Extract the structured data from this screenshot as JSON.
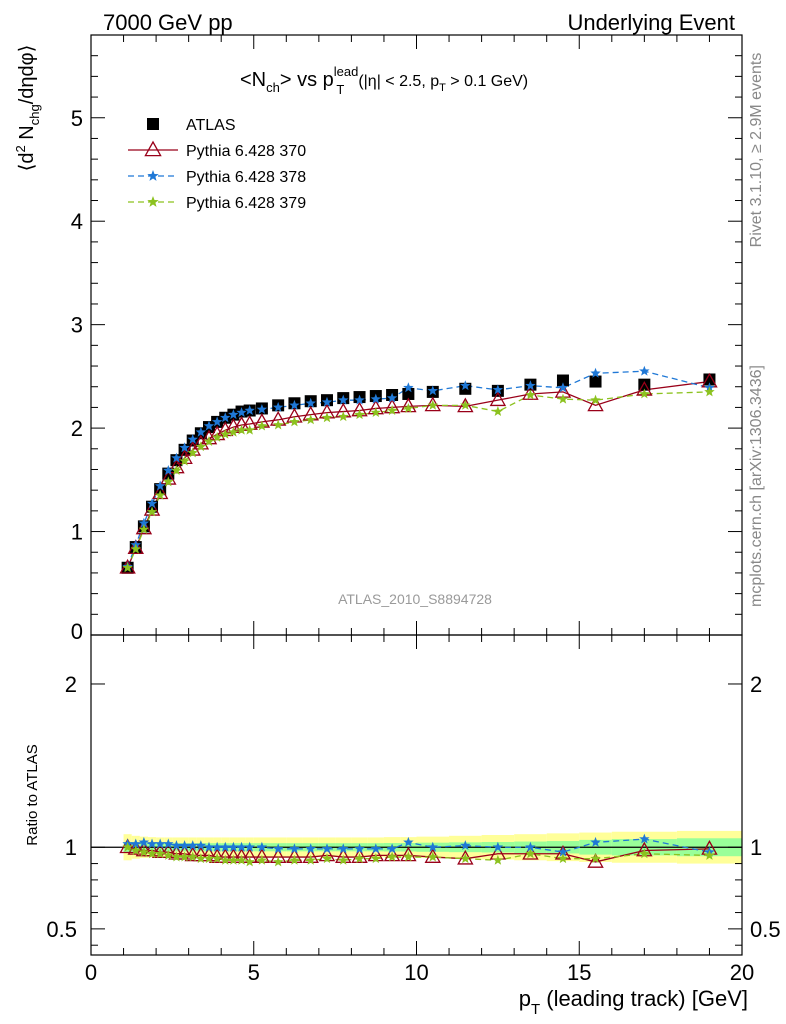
{
  "header": {
    "left": "7000 GeV pp",
    "right": "Underlying Event"
  },
  "side_texts": {
    "rivet": "Rivet 3.1.10, ≥ 2.9M events",
    "mcplots": "mcplots.cern.ch [arXiv:1306.3436]"
  },
  "colors": {
    "atlas": "#000000",
    "p370": "#990019",
    "p378": "#1f78d6",
    "p379": "#8cc21f",
    "band_inner": "#99ff99",
    "band_outer": "#ffff99"
  },
  "chart_data": [
    {
      "type": "scatter",
      "title": "<N_ch> vs p_T^lead (|η| < 2.5, p_T > 0.1 GeV)",
      "ylabel": "⟨d² N_chg/dηdφ⟩",
      "watermark": "ATLAS_2010_S8894728",
      "xlim": [
        0,
        20
      ],
      "ylim": [
        0,
        5.8
      ],
      "yticks": [
        1,
        2,
        3,
        4,
        5
      ],
      "legend_position": "top-left",
      "x": [
        1.125,
        1.375,
        1.625,
        1.875,
        2.125,
        2.375,
        2.625,
        2.875,
        3.125,
        3.375,
        3.625,
        3.875,
        4.125,
        4.375,
        4.625,
        4.875,
        5.25,
        5.75,
        6.25,
        6.75,
        7.25,
        7.75,
        8.25,
        8.75,
        9.25,
        9.75,
        10.5,
        11.5,
        12.5,
        13.5,
        14.5,
        15.5,
        17,
        19
      ],
      "series": [
        {
          "name": "ATLAS",
          "marker": "square",
          "values": [
            0.65,
            0.85,
            1.05,
            1.24,
            1.41,
            1.56,
            1.69,
            1.79,
            1.88,
            1.95,
            2.01,
            2.06,
            2.1,
            2.13,
            2.16,
            2.17,
            2.19,
            2.22,
            2.24,
            2.26,
            2.27,
            2.29,
            2.3,
            2.31,
            2.32,
            2.33,
            2.35,
            2.38,
            2.36,
            2.42,
            2.46,
            2.45,
            2.42,
            2.47
          ]
        },
        {
          "name": "Pythia 6.428 370",
          "marker": "triangle",
          "values": [
            0.65,
            0.84,
            1.03,
            1.21,
            1.37,
            1.51,
            1.62,
            1.71,
            1.79,
            1.85,
            1.9,
            1.94,
            1.98,
            2.01,
            2.03,
            2.04,
            2.06,
            2.08,
            2.11,
            2.13,
            2.15,
            2.16,
            2.17,
            2.19,
            2.2,
            2.21,
            2.22,
            2.21,
            2.27,
            2.33,
            2.35,
            2.22,
            2.37,
            2.45
          ]
        },
        {
          "name": "Pythia 6.428 378",
          "marker": "star",
          "values": [
            0.66,
            0.87,
            1.08,
            1.27,
            1.44,
            1.59,
            1.71,
            1.81,
            1.89,
            1.96,
            2.02,
            2.06,
            2.1,
            2.13,
            2.15,
            2.17,
            2.18,
            2.2,
            2.22,
            2.24,
            2.25,
            2.27,
            2.27,
            2.28,
            2.29,
            2.39,
            2.36,
            2.41,
            2.37,
            2.41,
            2.39,
            2.53,
            2.55,
            2.39
          ]
        },
        {
          "name": "Pythia 6.428 379",
          "marker": "star",
          "values": [
            0.65,
            0.83,
            1.02,
            1.19,
            1.35,
            1.48,
            1.59,
            1.68,
            1.76,
            1.82,
            1.87,
            1.91,
            1.94,
            1.96,
            1.98,
            1.98,
            2.02,
            2.03,
            2.06,
            2.08,
            2.1,
            2.11,
            2.13,
            2.15,
            2.17,
            2.19,
            2.22,
            2.22,
            2.16,
            2.32,
            2.28,
            2.27,
            2.33,
            2.35
          ]
        }
      ]
    },
    {
      "type": "scatter",
      "ylabel": "Ratio to ATLAS",
      "xlabel": "p_T (leading track) [GeV]",
      "xlim": [
        0,
        20
      ],
      "ylim": [
        0.34,
        2.3
      ],
      "yticks": [
        0.5,
        1,
        2
      ],
      "ytick_labels": [
        "0.5",
        "1",
        "2"
      ],
      "xticks": [
        0,
        5,
        10,
        15,
        20
      ],
      "bands": {
        "x_edges": [
          1.0,
          1.25,
          1.5,
          1.75,
          2.0,
          2.25,
          2.5,
          2.75,
          3.0,
          3.25,
          3.5,
          3.75,
          4.0,
          4.25,
          4.5,
          4.75,
          5.0,
          5.5,
          6.0,
          6.5,
          7.0,
          7.5,
          8.0,
          8.5,
          9.0,
          9.5,
          10.0,
          11.0,
          12.0,
          13.0,
          14.0,
          15.0,
          16.0,
          18.0,
          20.0
        ],
        "inner": [
          0.03,
          0.028,
          0.027,
          0.026,
          0.026,
          0.025,
          0.025,
          0.025,
          0.025,
          0.025,
          0.025,
          0.025,
          0.025,
          0.025,
          0.025,
          0.025,
          0.025,
          0.025,
          0.025,
          0.025,
          0.025,
          0.025,
          0.025,
          0.025,
          0.026,
          0.026,
          0.028,
          0.03,
          0.032,
          0.035,
          0.038,
          0.045,
          0.05,
          0.055
        ],
        "outer": [
          0.08,
          0.07,
          0.065,
          0.062,
          0.06,
          0.06,
          0.06,
          0.06,
          0.06,
          0.06,
          0.06,
          0.06,
          0.06,
          0.06,
          0.06,
          0.06,
          0.06,
          0.06,
          0.06,
          0.06,
          0.06,
          0.06,
          0.06,
          0.06,
          0.062,
          0.062,
          0.065,
          0.07,
          0.075,
          0.08,
          0.085,
          0.09,
          0.095,
          0.1
        ]
      },
      "series": [
        {
          "name": "Pythia 6.428 370",
          "marker": "triangle",
          "values": [
            1.0,
            0.99,
            0.98,
            0.98,
            0.97,
            0.97,
            0.96,
            0.96,
            0.95,
            0.95,
            0.95,
            0.94,
            0.94,
            0.94,
            0.94,
            0.94,
            0.94,
            0.94,
            0.94,
            0.94,
            0.95,
            0.94,
            0.94,
            0.95,
            0.95,
            0.95,
            0.94,
            0.93,
            0.96,
            0.96,
            0.96,
            0.91,
            0.98,
            0.99
          ]
        },
        {
          "name": "Pythia 6.428 378",
          "marker": "star",
          "values": [
            1.02,
            1.02,
            1.03,
            1.02,
            1.02,
            1.02,
            1.01,
            1.01,
            1.01,
            1.01,
            1.0,
            1.0,
            1.0,
            1.0,
            1.0,
            1.0,
            1.0,
            0.99,
            0.99,
            0.99,
            0.99,
            0.99,
            0.99,
            0.99,
            0.99,
            1.03,
            1.0,
            1.01,
            1.0,
            1.0,
            0.97,
            1.03,
            1.05,
            0.97
          ]
        },
        {
          "name": "Pythia 6.428 379",
          "marker": "star",
          "values": [
            1.0,
            0.98,
            0.97,
            0.96,
            0.96,
            0.95,
            0.94,
            0.94,
            0.94,
            0.93,
            0.93,
            0.93,
            0.92,
            0.92,
            0.92,
            0.91,
            0.92,
            0.91,
            0.92,
            0.92,
            0.93,
            0.92,
            0.93,
            0.93,
            0.94,
            0.94,
            0.94,
            0.93,
            0.92,
            0.96,
            0.93,
            0.93,
            0.96,
            0.95
          ]
        }
      ]
    }
  ]
}
